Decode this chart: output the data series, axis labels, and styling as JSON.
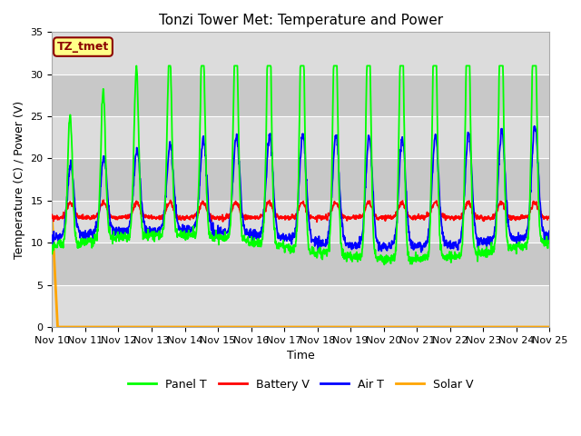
{
  "title": "Tonzi Tower Met: Temperature and Power",
  "ylabel": "Temperature (C) / Power (V)",
  "xlabel": "Time",
  "ylim": [
    0,
    35
  ],
  "yticks": [
    0,
    5,
    10,
    15,
    20,
    25,
    30,
    35
  ],
  "xtick_labels": [
    "Nov 10",
    "Nov 11",
    "Nov 12",
    "Nov 13",
    "Nov 14",
    "Nov 15",
    "Nov 16",
    "Nov 17",
    "Nov 18",
    "Nov 19",
    "Nov 20",
    "Nov 21",
    "Nov 22",
    "Nov 23",
    "Nov 24",
    "Nov 25"
  ],
  "colors": {
    "panel_t": "#00FF00",
    "battery_v": "#FF0000",
    "air_t": "#0000FF",
    "solar_v": "#FFA500"
  },
  "legend_labels": [
    "Panel T",
    "Battery V",
    "Air T",
    "Solar V"
  ],
  "annotation_text": "TZ_tmet",
  "annotation_bg": "#FFFF88",
  "annotation_border": "#8B0000",
  "plot_bg_light": "#DCDCDC",
  "plot_bg_dark": "#C8C8C8",
  "fig_bg": "#FFFFFF",
  "grid_color": "#FFFFFF",
  "title_fontsize": 11,
  "axis_fontsize": 9,
  "tick_fontsize": 8,
  "legend_fontsize": 9
}
